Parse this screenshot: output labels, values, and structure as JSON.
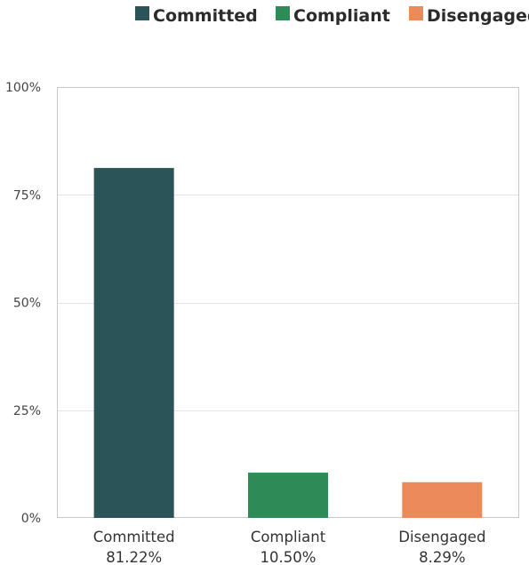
{
  "chart_data": {
    "type": "bar",
    "categories": [
      "Committed",
      "Compliant",
      "Disengaged"
    ],
    "values": [
      81.22,
      10.5,
      8.29
    ],
    "value_labels": [
      "81.22%",
      "10.50%",
      "8.29%"
    ],
    "colors": [
      "#2b5459",
      "#2e8b57",
      "#ec8a5a"
    ],
    "title": "",
    "xlabel": "",
    "ylabel": "",
    "ylim": [
      0,
      100
    ],
    "yticks": [
      0,
      25,
      50,
      75,
      100
    ],
    "ytick_labels": [
      "0%",
      "25%",
      "50%",
      "75%",
      "100%"
    ],
    "grid": true,
    "legend": {
      "placement": "top-right",
      "entries": [
        {
          "label": "Committed",
          "color": "#2b5459"
        },
        {
          "label": "Compliant",
          "color": "#2e8b57"
        },
        {
          "label": "Disengaged",
          "color": "#ec8a5a"
        }
      ]
    }
  }
}
